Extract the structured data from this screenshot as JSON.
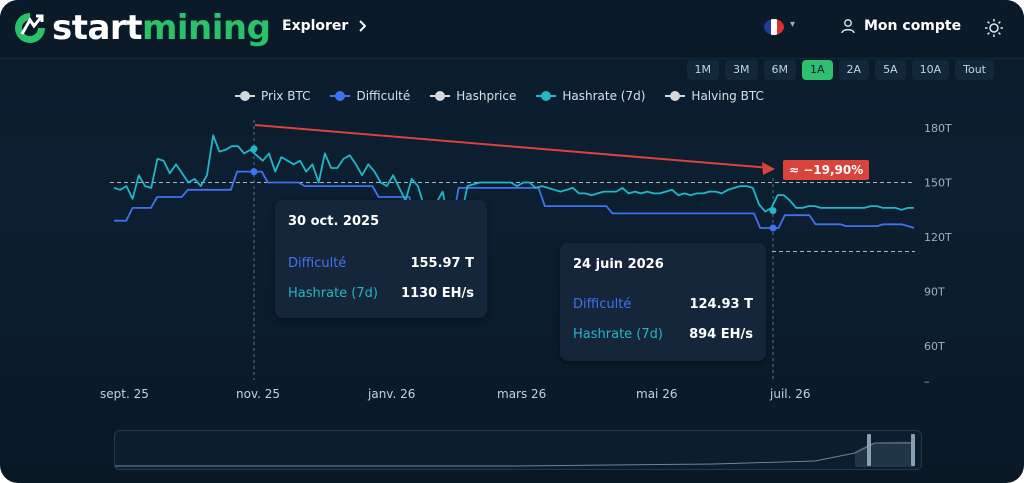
{
  "brand": {
    "name_part1": "start",
    "name_part2": "mining",
    "accent": "#29c26a"
  },
  "header": {
    "explorer_label": "Explorer",
    "account_label": "Mon compte"
  },
  "range_buttons": [
    "1M",
    "3M",
    "6M",
    "1A",
    "2A",
    "5A",
    "10A",
    "Tout"
  ],
  "active_range": "1A",
  "legend": [
    {
      "label": "Prix BTC",
      "color": "#d6d9dc"
    },
    {
      "label": "Difficulté",
      "color": "#3f72f0"
    },
    {
      "label": "Hashprice",
      "color": "#d6d9dc"
    },
    {
      "label": "Hashrate (7d)",
      "color": "#22b6c8"
    },
    {
      "label": "Halving BTC",
      "color": "#d6d9dc"
    }
  ],
  "tooltip_left": {
    "date": "30 oct. 2025",
    "difficulty_label": "Difficulté",
    "difficulty_value": "155.97 T",
    "hashrate_label": "Hashrate (7d)",
    "hashrate_value": "1130 EH/s"
  },
  "tooltip_right": {
    "date": "24 juin 2026",
    "difficulty_label": "Difficulté",
    "difficulty_value": "124.93 T",
    "hashrate_label": "Hashrate (7d)",
    "hashrate_value": "894 EH/s"
  },
  "annotation": {
    "text": "≈ −19,90%",
    "color": "#d9433b"
  },
  "chart_data": {
    "type": "line",
    "x_tick_labels": [
      "sept. 25",
      "nov. 25",
      "janv. 26",
      "mars 26",
      "mai 26",
      "juil. 26"
    ],
    "y_tick_labels": [
      "180T",
      "150T",
      "120T",
      "90T",
      "60T",
      "–"
    ],
    "ylim": [
      50,
      185
    ],
    "grid": false,
    "series": [
      {
        "name": "Difficulté",
        "color": "#3f72f0",
        "values": [
          129,
          129,
          129,
          136,
          136,
          136,
          136,
          142,
          142,
          142,
          142,
          142,
          146,
          146,
          146,
          146,
          146,
          146,
          146,
          146,
          155.97,
          156,
          156,
          156,
          156,
          150,
          150,
          150,
          150,
          150,
          150,
          148,
          148,
          148,
          148,
          148,
          148,
          148,
          148,
          148,
          148,
          148,
          148,
          142,
          142,
          142,
          142,
          142,
          142,
          128,
          128,
          128,
          128,
          128,
          128,
          128,
          147,
          147,
          147,
          147,
          147,
          147,
          147,
          147,
          147,
          147,
          147,
          147,
          147,
          147,
          137,
          137,
          137,
          137,
          137,
          137,
          137,
          137,
          137,
          137,
          137,
          133,
          133,
          133,
          133,
          133,
          133,
          133,
          133,
          133,
          133,
          133,
          133,
          133,
          133,
          133,
          133,
          133,
          133,
          133,
          133,
          133,
          133,
          133,
          133,
          124.93,
          124.93,
          124.93,
          124.93,
          132,
          132,
          132,
          132,
          132,
          127,
          127,
          127,
          127,
          127,
          126,
          126,
          126,
          126,
          126,
          126,
          127,
          127,
          127,
          127,
          126,
          125
        ]
      },
      {
        "name": "Hashrate (7d)",
        "color": "#22b6c8",
        "values": [
          147,
          146,
          148,
          141,
          154,
          148,
          147,
          163,
          162,
          155,
          160,
          155,
          150,
          152,
          148,
          154,
          176,
          167,
          168,
          170,
          170,
          166,
          168,
          165,
          162,
          166,
          156,
          164,
          162,
          160,
          162,
          156,
          160,
          150,
          166,
          158,
          158,
          163,
          165,
          160,
          154,
          160,
          156,
          150,
          148,
          154,
          147,
          140,
          152,
          148,
          137,
          136,
          139,
          145,
          128,
          125,
          132,
          148,
          149,
          150,
          150,
          150,
          150,
          150,
          150,
          148,
          150,
          150,
          147,
          148,
          147,
          146,
          145,
          146,
          147,
          144,
          144,
          143,
          144,
          145,
          145,
          145,
          147,
          144,
          145,
          144,
          145,
          144,
          144,
          145,
          146,
          143,
          144,
          143,
          144,
          144,
          145,
          145,
          144,
          146,
          147,
          148,
          148,
          147,
          138,
          134,
          136,
          143,
          143,
          140,
          136,
          136,
          137,
          137,
          136,
          136,
          136,
          136,
          136,
          136,
          136,
          136,
          137,
          137,
          136,
          136,
          136,
          135,
          136,
          136
        ]
      }
    ],
    "halving_line_value": 150,
    "support_line_value": 112,
    "trend": {
      "from": "30 oct. 2025",
      "to": "24 juin 2026",
      "change": "≈ −19,90%"
    }
  }
}
